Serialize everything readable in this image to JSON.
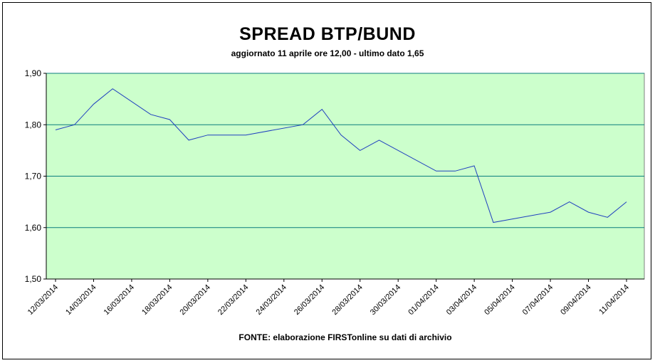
{
  "chart_data": {
    "type": "line",
    "title": "SPREAD BTP/BUND",
    "subtitle": "aggiornato 11 aprile ore 12,00 - ultimo dato 1,65",
    "source": "FONTE:  elaborazione FIRSTonline su dati di archivio",
    "xlabel": "",
    "ylabel": "",
    "ylim": [
      1.5,
      1.9
    ],
    "yticks": [
      1.5,
      1.6,
      1.7,
      1.8,
      1.9
    ],
    "ytick_labels": [
      "1,50",
      "1,60",
      "1,70",
      "1,80",
      "1,90"
    ],
    "xtick_labels": [
      "12/03/2014",
      "14/03/2014",
      "16/03/2014",
      "18/03/2014",
      "20/03/2014",
      "22/03/2014",
      "24/03/2014",
      "26/03/2014",
      "28/03/2014",
      "30/03/2014",
      "01/04/2014",
      "03/04/2014",
      "05/04/2014",
      "07/04/2014",
      "09/04/2014",
      "11/04/2014"
    ],
    "x": [
      "12/03/2014",
      "13/03/2014",
      "14/03/2014",
      "15/03/2014",
      "17/03/2014",
      "18/03/2014",
      "19/03/2014",
      "20/03/2014",
      "22/03/2014",
      "25/03/2014",
      "26/03/2014",
      "27/03/2014",
      "28/03/2014",
      "29/03/2014",
      "01/04/2014",
      "02/04/2014",
      "03/04/2014",
      "04/04/2014",
      "07/04/2014",
      "08/04/2014",
      "09/04/2014",
      "10/04/2014",
      "11/04/2014"
    ],
    "series": [
      {
        "values": [
          1.79,
          1.8,
          1.84,
          1.87,
          1.82,
          1.81,
          1.77,
          1.78,
          1.78,
          1.8,
          1.83,
          1.78,
          1.75,
          1.77,
          1.71,
          1.71,
          1.72,
          1.61,
          1.63,
          1.65,
          1.63,
          1.62,
          1.65
        ],
        "color": "#1f3fbf"
      }
    ],
    "plot_background": "#ccffcc",
    "gridline_color": "#0a7d7d",
    "grid": "horizontal"
  }
}
